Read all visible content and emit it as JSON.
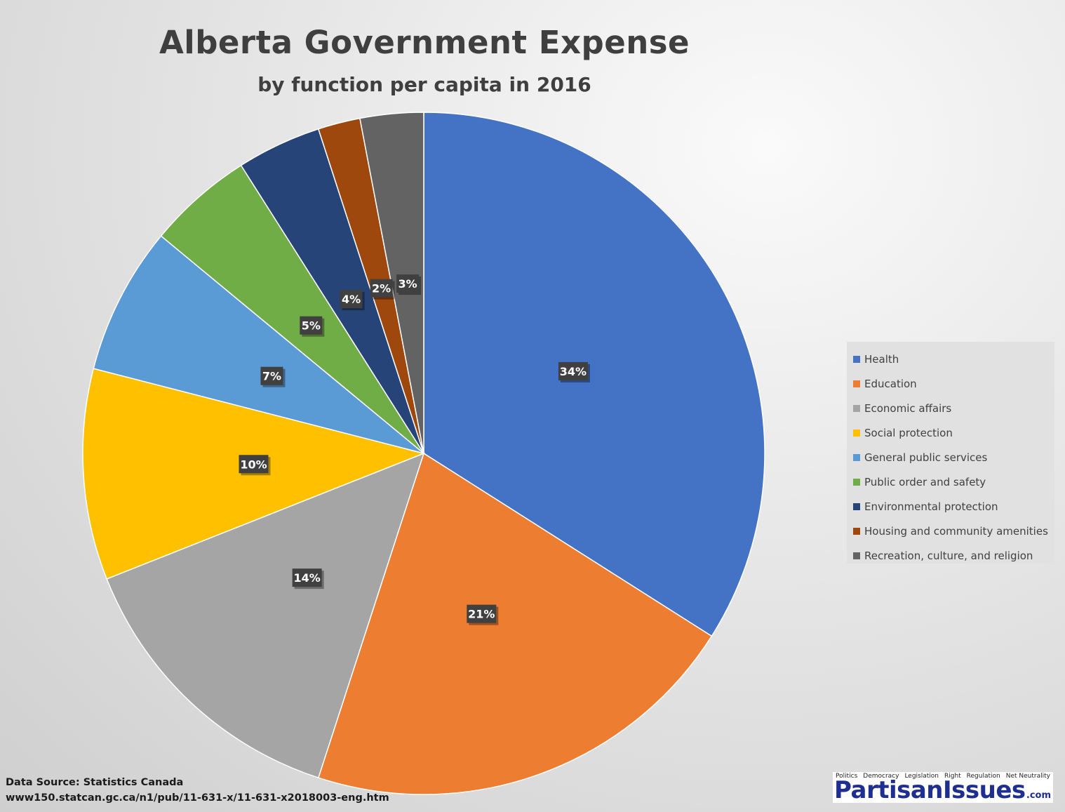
{
  "chart_data": {
    "type": "pie",
    "title": "Alberta Government Expense",
    "subtitle": "by function per capita in 2016",
    "categories": [
      "Health",
      "Education",
      "Economic affairs",
      "Social protection",
      "General public services",
      "Public order and safety",
      "Environmental protection",
      "Housing and community amenities",
      "Recreation, culture, and religion"
    ],
    "values": [
      34,
      21,
      14,
      10,
      7,
      5,
      4,
      2,
      3
    ],
    "labels": [
      "34%",
      "21%",
      "14%",
      "10%",
      "7%",
      "5%",
      "4%",
      "2%",
      "3%"
    ],
    "colors": [
      "#4472c4",
      "#ed7d31",
      "#a5a5a5",
      "#ffc000",
      "#5b9bd5",
      "#70ad47",
      "#264478",
      "#9e480e",
      "#636363"
    ],
    "start_angle": "12 o'clock",
    "direction": "clockwise",
    "legend_position": "right"
  },
  "source": {
    "line1": "Data Source: Statistics Canada",
    "line2": "www150.statcan.gc.ca/n1/pub/11-631-x/11-631-x2018003-eng.htm"
  },
  "brand": {
    "words": [
      "Politics",
      "Democracy",
      "Legislation",
      "Right",
      "Regulation",
      "Net Neutrality"
    ],
    "main": "PartisanIssues",
    "suffix": ".com"
  }
}
